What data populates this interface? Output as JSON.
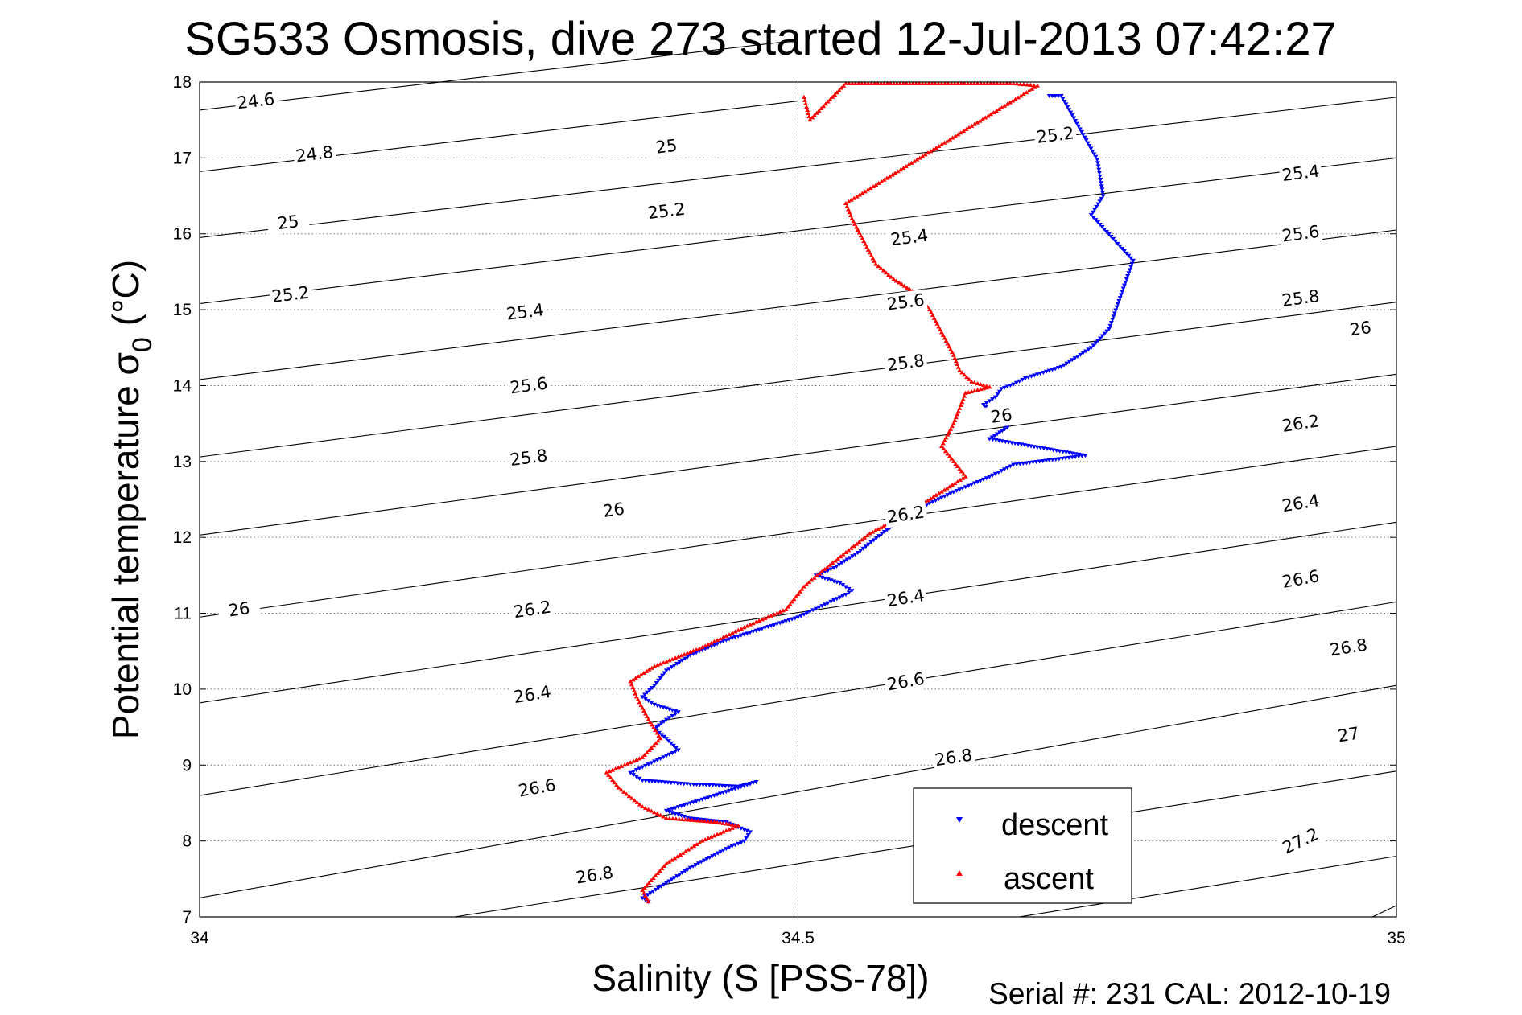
{
  "chart_data": {
    "type": "scatter",
    "title": "SG533 Osmosis, dive 273 started 12-Jul-2013 07:42:27",
    "xlabel": "Salinity (S [PSS-78])",
    "ylabel_main": "Potential temperature σ",
    "ylabel_sub": "0",
    "ylabel_unit": "(°C)",
    "xlim": [
      34,
      35
    ],
    "ylim": [
      7,
      18
    ],
    "xticks": [
      34,
      34.5,
      35
    ],
    "xtick_labels": [
      "34",
      "34.5",
      "35"
    ],
    "yticks": [
      7,
      8,
      9,
      10,
      11,
      12,
      13,
      14,
      15,
      16,
      17,
      18
    ],
    "ytick_labels": [
      "7",
      "8",
      "9",
      "10",
      "11",
      "12",
      "13",
      "14",
      "15",
      "16",
      "17",
      "18"
    ],
    "grid": true,
    "legend_position": "bottom-right",
    "footer": "Serial #: 231  CAL: 2012-10-19",
    "contours": [
      {
        "level": "24.6",
        "points": [
          [
            34,
            17.63
          ],
          [
            34.5,
            18.55
          ]
        ],
        "labels": [
          [
            34.047,
            17.75
          ]
        ]
      },
      {
        "level": "24.8",
        "points": [
          [
            34,
            16.82
          ],
          [
            34.5,
            17.75
          ]
        ],
        "labels": [
          [
            34.096,
            17.05
          ]
        ]
      },
      {
        "level": "25",
        "points": [
          [
            34,
            15.95
          ],
          [
            35,
            17.8
          ]
        ],
        "labels": [
          [
            34.074,
            16.15
          ],
          [
            34.39,
            17.15
          ]
        ]
      },
      {
        "level": "25.2",
        "points": [
          [
            34,
            15.08
          ],
          [
            35,
            17.0
          ]
        ],
        "labels": [
          [
            34.076,
            15.2
          ],
          [
            34.39,
            16.3
          ],
          [
            34.715,
            17.3
          ]
        ]
      },
      {
        "level": "25.4",
        "points": [
          [
            34,
            14.08
          ],
          [
            35,
            16.05
          ]
        ],
        "labels": [
          [
            34.272,
            14.97
          ],
          [
            34.593,
            15.95
          ],
          [
            34.92,
            16.8
          ]
        ]
      },
      {
        "level": "25.6",
        "points": [
          [
            34,
            13.06
          ],
          [
            35,
            15.1
          ]
        ],
        "labels": [
          [
            34.275,
            14.0
          ],
          [
            34.59,
            15.1
          ],
          [
            34.92,
            16.0
          ]
        ]
      },
      {
        "level": "25.8",
        "points": [
          [
            34,
            12.03
          ],
          [
            35,
            14.15
          ]
        ],
        "labels": [
          [
            34.275,
            13.05
          ],
          [
            34.59,
            14.3
          ],
          [
            34.92,
            15.15
          ]
        ]
      },
      {
        "level": "26",
        "points": [
          [
            34,
            10.95
          ],
          [
            35,
            13.2
          ]
        ],
        "labels": [
          [
            34.033,
            11.05
          ],
          [
            34.346,
            12.36
          ],
          [
            34.67,
            13.6
          ],
          [
            34.97,
            14.75
          ]
        ]
      },
      {
        "level": "26.2",
        "points": [
          [
            34,
            9.82
          ],
          [
            35,
            12.2
          ]
        ],
        "labels": [
          [
            34.278,
            11.05
          ],
          [
            34.59,
            12.3
          ],
          [
            34.92,
            13.5
          ]
        ]
      },
      {
        "level": "26.4",
        "points": [
          [
            34,
            8.6
          ],
          [
            35,
            11.15
          ]
        ],
        "labels": [
          [
            34.278,
            9.93
          ],
          [
            34.59,
            11.2
          ],
          [
            34.92,
            12.45
          ]
        ]
      },
      {
        "level": "26.6",
        "points": [
          [
            34,
            7.25
          ],
          [
            35,
            10.05
          ]
        ],
        "labels": [
          [
            34.282,
            8.7
          ],
          [
            34.59,
            10.1
          ],
          [
            34.92,
            11.45
          ]
        ]
      },
      {
        "level": "26.8",
        "points": [
          [
            34.213,
            7
          ],
          [
            35,
            8.92
          ]
        ],
        "labels": [
          [
            34.33,
            7.55
          ],
          [
            34.63,
            9.1
          ],
          [
            34.96,
            10.55
          ]
        ]
      },
      {
        "level": "27",
        "points": [
          [
            34.685,
            7
          ],
          [
            35,
            7.8
          ]
        ],
        "labels": [
          [
            34.96,
            9.4
          ]
        ]
      },
      {
        "level": "27.2",
        "points": [
          [
            34.98,
            7
          ],
          [
            35,
            7.15
          ]
        ],
        "labels": [
          [
            34.92,
            8.0
          ]
        ]
      }
    ],
    "series": [
      {
        "name": "descent",
        "color": "#0000ff",
        "marker": "triangle-down",
        "path": [
          [
            34.71,
            17.82
          ],
          [
            34.72,
            17.82
          ],
          [
            34.75,
            16.98
          ],
          [
            34.755,
            16.5
          ],
          [
            34.745,
            16.25
          ],
          [
            34.78,
            15.65
          ],
          [
            34.77,
            15.2
          ],
          [
            34.76,
            14.75
          ],
          [
            34.745,
            14.5
          ],
          [
            34.72,
            14.25
          ],
          [
            34.69,
            14.1
          ],
          [
            34.68,
            14.02
          ],
          [
            34.67,
            13.96
          ],
          [
            34.665,
            13.85
          ],
          [
            34.655,
            13.75
          ],
          [
            34.67,
            13.5
          ],
          [
            34.675,
            13.45
          ],
          [
            34.66,
            13.3
          ],
          [
            34.74,
            13.08
          ],
          [
            34.71,
            13.02
          ],
          [
            34.68,
            12.96
          ],
          [
            34.66,
            12.8
          ],
          [
            34.63,
            12.6
          ],
          [
            34.61,
            12.45
          ],
          [
            34.59,
            12.28
          ],
          [
            34.57,
            12.05
          ],
          [
            34.55,
            11.8
          ],
          [
            34.53,
            11.6
          ],
          [
            34.515,
            11.5
          ],
          [
            34.535,
            11.4
          ],
          [
            34.545,
            11.3
          ],
          [
            34.54,
            11.25
          ],
          [
            34.52,
            11.1
          ],
          [
            34.5,
            10.95
          ],
          [
            34.47,
            10.8
          ],
          [
            34.44,
            10.65
          ],
          [
            34.41,
            10.45
          ],
          [
            34.39,
            10.25
          ],
          [
            34.38,
            10.05
          ],
          [
            34.37,
            9.9
          ],
          [
            34.38,
            9.8
          ],
          [
            34.4,
            9.7
          ],
          [
            34.39,
            9.6
          ],
          [
            34.38,
            9.48
          ],
          [
            34.39,
            9.35
          ],
          [
            34.4,
            9.2
          ],
          [
            34.38,
            9.05
          ],
          [
            34.36,
            8.9
          ],
          [
            34.37,
            8.8
          ],
          [
            34.41,
            8.75
          ],
          [
            34.45,
            8.72
          ],
          [
            34.465,
            8.78
          ],
          [
            34.42,
            8.55
          ],
          [
            34.39,
            8.4
          ],
          [
            34.41,
            8.3
          ],
          [
            34.44,
            8.25
          ],
          [
            34.46,
            8.12
          ],
          [
            34.455,
            8.0
          ],
          [
            34.44,
            7.9
          ],
          [
            34.41,
            7.65
          ],
          [
            34.39,
            7.45
          ],
          [
            34.37,
            7.25
          ],
          [
            34.375,
            7.2
          ]
        ]
      },
      {
        "name": "ascent",
        "color": "#ff0000",
        "marker": "triangle-up",
        "path": [
          [
            34.505,
            17.8
          ],
          [
            34.51,
            17.5
          ],
          [
            34.54,
            17.98
          ],
          [
            34.58,
            17.98
          ],
          [
            34.62,
            17.98
          ],
          [
            34.68,
            17.98
          ],
          [
            34.7,
            17.95
          ],
          [
            34.54,
            16.4
          ],
          [
            34.545,
            16.2
          ],
          [
            34.565,
            15.6
          ],
          [
            34.58,
            15.4
          ],
          [
            34.6,
            15.2
          ],
          [
            34.61,
            15.0
          ],
          [
            34.62,
            14.7
          ],
          [
            34.63,
            14.4
          ],
          [
            34.635,
            14.2
          ],
          [
            34.645,
            14.05
          ],
          [
            34.66,
            13.98
          ],
          [
            34.64,
            13.9
          ],
          [
            34.63,
            13.5
          ],
          [
            34.62,
            13.2
          ],
          [
            34.63,
            13.0
          ],
          [
            34.64,
            12.8
          ],
          [
            34.62,
            12.6
          ],
          [
            34.59,
            12.3
          ],
          [
            34.56,
            12.05
          ],
          [
            34.54,
            11.8
          ],
          [
            34.52,
            11.55
          ],
          [
            34.505,
            11.35
          ],
          [
            34.49,
            11.05
          ],
          [
            34.46,
            10.85
          ],
          [
            34.42,
            10.55
          ],
          [
            34.38,
            10.3
          ],
          [
            34.36,
            10.1
          ],
          [
            34.365,
            9.9
          ],
          [
            34.37,
            9.75
          ],
          [
            34.375,
            9.6
          ],
          [
            34.385,
            9.35
          ],
          [
            34.37,
            9.1
          ],
          [
            34.34,
            8.9
          ],
          [
            34.35,
            8.7
          ],
          [
            34.37,
            8.45
          ],
          [
            34.39,
            8.3
          ],
          [
            34.43,
            8.25
          ],
          [
            34.45,
            8.2
          ],
          [
            34.42,
            8.0
          ],
          [
            34.39,
            7.7
          ],
          [
            34.37,
            7.35
          ],
          [
            34.375,
            7.2
          ]
        ]
      }
    ]
  },
  "legend": {
    "items": [
      {
        "name": "descent",
        "color": "#0000ff",
        "marker": "triangle-down"
      },
      {
        "name": "ascent",
        "color": "#ff0000",
        "marker": "triangle-up"
      }
    ]
  }
}
